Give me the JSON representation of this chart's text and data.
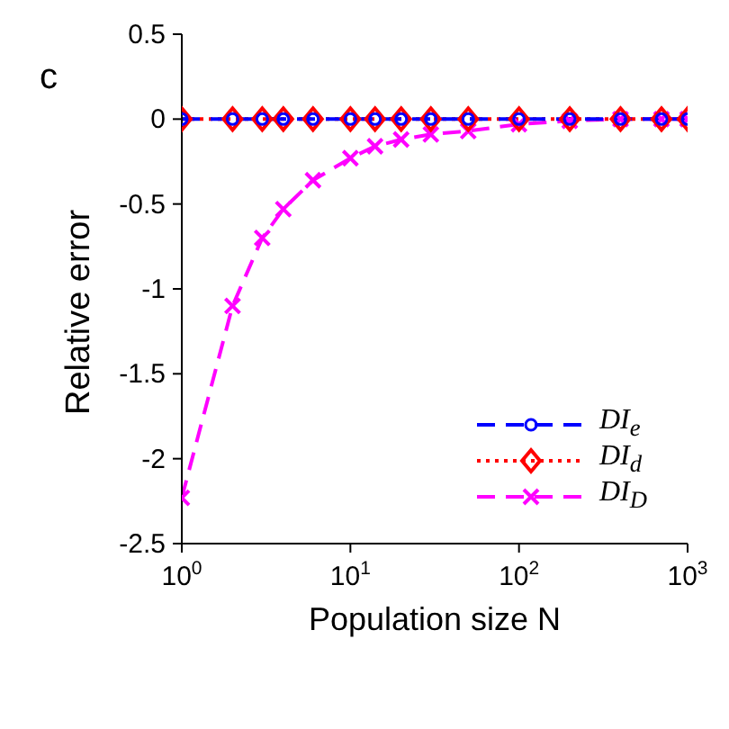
{
  "chart_data": {
    "type": "line",
    "title": "c",
    "xlabel": "Population size N",
    "ylabel": "Relative error",
    "x": [
      1,
      2,
      3,
      4,
      6,
      10,
      14,
      20,
      30,
      50,
      100,
      200,
      400,
      700,
      1000
    ],
    "series": [
      {
        "name": "DI$_{e}$",
        "color": "#0000ff",
        "marker": "circle",
        "line_style": "dashed",
        "values": [
          0,
          0,
          0,
          0,
          0,
          0,
          0,
          0,
          0,
          0,
          0,
          0,
          0,
          0,
          0
        ]
      },
      {
        "name": "DI$_{d}$",
        "color": "#ff0000",
        "marker": "diamond",
        "line_style": "dotted",
        "values": [
          0,
          0,
          0,
          0,
          0,
          0,
          0,
          0,
          0,
          0,
          0,
          0,
          0,
          0,
          0
        ]
      },
      {
        "name": "DI$_{D}$",
        "color": "#ff00ff",
        "marker": "cross",
        "line_style": "dashed",
        "values": [
          -2.23,
          -1.1,
          -0.7,
          -0.53,
          -0.36,
          -0.23,
          -0.16,
          -0.12,
          -0.09,
          -0.07,
          -0.03,
          -0.01,
          0,
          0,
          0
        ]
      }
    ],
    "log": "x",
    "xlim": [
      1,
      1000
    ],
    "xticks": [
      {
        "value": 1,
        "label": "10$^{0}$"
      },
      {
        "value": 10,
        "label": "10$^{1}$"
      },
      {
        "value": 100,
        "label": "10$^{2}$"
      },
      {
        "value": 1000,
        "label": "10$^{3}$"
      }
    ],
    "ylim": [
      -2.5,
      0.5
    ],
    "yticks": [
      -2.5,
      -2,
      -1.5,
      -1,
      -0.5,
      0,
      0.5
    ],
    "grid": false,
    "legend": "bottom right"
  }
}
